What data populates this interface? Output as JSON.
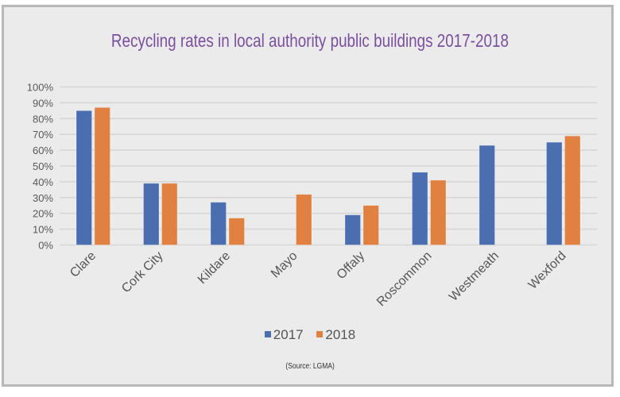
{
  "chart_data": {
    "type": "bar",
    "title": "Recycling rates in local authority public buildings 2017-2018",
    "xlabel": "",
    "ylabel": "",
    "ylim": [
      0,
      100
    ],
    "y_ticks": [
      "0%",
      "10%",
      "20%",
      "30%",
      "40%",
      "50%",
      "60%",
      "70%",
      "80%",
      "90%",
      "100%"
    ],
    "y_tick_values": [
      0,
      10,
      20,
      30,
      40,
      50,
      60,
      70,
      80,
      90,
      100
    ],
    "grid": true,
    "legend_position": "bottom",
    "categories": [
      "Clare",
      "Cork City",
      "Kildare",
      "Mayo",
      "Offaly",
      "Roscommon",
      "Westmeath",
      "Wexford"
    ],
    "series": [
      {
        "name": "2017",
        "color": "#4a6eb0",
        "values": [
          85,
          39,
          27,
          null,
          19,
          46,
          63,
          65
        ]
      },
      {
        "name": "2018",
        "color": "#e08142",
        "values": [
          87,
          39,
          17,
          32,
          25,
          41,
          null,
          69
        ]
      }
    ],
    "source_note": "(Source: LGMA)"
  }
}
